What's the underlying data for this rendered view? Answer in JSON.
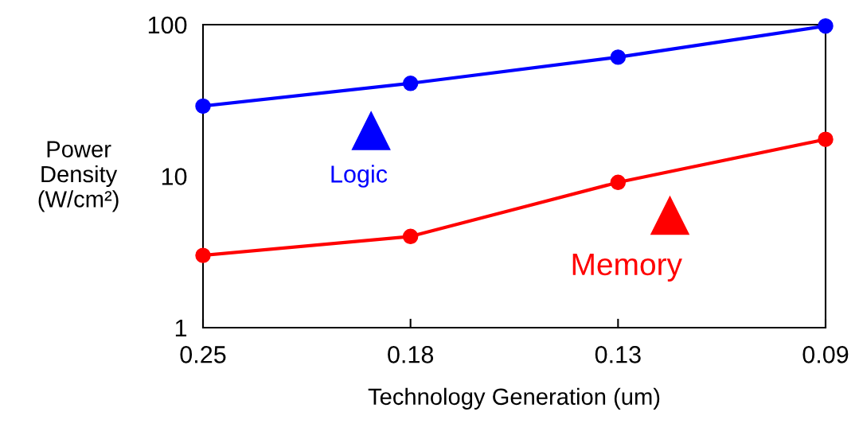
{
  "chart_data": {
    "type": "line",
    "xlabel": "Technology Generation (um)",
    "ylabel": "Power\nDensity\n(W/cm²)",
    "categories": [
      "0.25",
      "0.18",
      "0.13",
      "0.09"
    ],
    "series": [
      {
        "name": "Logic",
        "color": "#0000ff",
        "values": [
          29,
          41,
          61,
          98
        ]
      },
      {
        "name": "Memory",
        "color": "#ff0000",
        "values": [
          3,
          4,
          9.1,
          17.5
        ]
      }
    ],
    "log": true,
    "ylim": [
      1,
      100
    ],
    "yticks": [
      1,
      10,
      100
    ],
    "grid": false,
    "legend": "center",
    "marker": "circle",
    "line_style": "solid"
  }
}
